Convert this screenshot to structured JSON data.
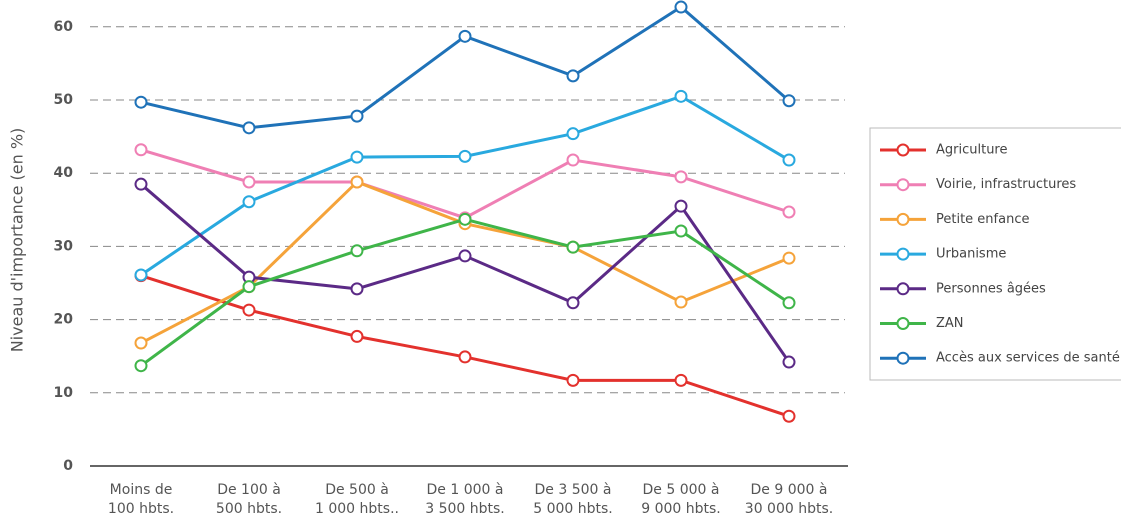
{
  "chart_data": {
    "type": "line",
    "y_label": "Niveau d'importance (en %)",
    "categories": [
      "Moins de\n100 hbts.",
      "De 100 à\n500 hbts.",
      "De 500 à\n1 000 hbts..",
      "De 1 000 à\n3 500 hbts.",
      "De 3 500 à\n5 000 hbts.",
      "De 5 000 à\n9 000 hbts.",
      "De 9 000 à\n30 000 hbts."
    ],
    "series": [
      {
        "name": "Agriculture",
        "color": "#e3312d",
        "values": [
          26,
          21.3,
          17.7,
          14.9,
          11.7,
          11.7,
          6.8
        ]
      },
      {
        "name": "Voirie, infrastructures",
        "color": "#ef7fb4",
        "values": [
          43.2,
          38.8,
          38.8,
          33.9,
          41.8,
          39.5,
          34.7
        ]
      },
      {
        "name": "Petite enfance",
        "color": "#f5a33a",
        "values": [
          16.8,
          24.5,
          38.8,
          33.1,
          29.9,
          22.4,
          28.4
        ]
      },
      {
        "name": "Urbanisme",
        "color": "#29a9df",
        "values": [
          26.1,
          36.1,
          42.2,
          42.3,
          45.4,
          50.5,
          41.8
        ]
      },
      {
        "name": "Personnes âgées",
        "color": "#5b2a86",
        "values": [
          38.5,
          25.8,
          24.2,
          28.7,
          22.3,
          35.5,
          14.2
        ]
      },
      {
        "name": "ZAN",
        "color": "#3fb549",
        "values": [
          13.7,
          24.5,
          29.4,
          33.7,
          29.9,
          32.1,
          22.3
        ]
      },
      {
        "name": "Accès aux services de santé",
        "color": "#1f72b8",
        "values": [
          49.7,
          46.2,
          47.8,
          58.7,
          53.3,
          62.7,
          49.9
        ]
      }
    ],
    "ylim": [
      0,
      63.5
    ],
    "yticks": [
      0,
      10,
      20,
      30,
      40,
      50,
      60
    ],
    "grid": true,
    "legend": "right"
  }
}
